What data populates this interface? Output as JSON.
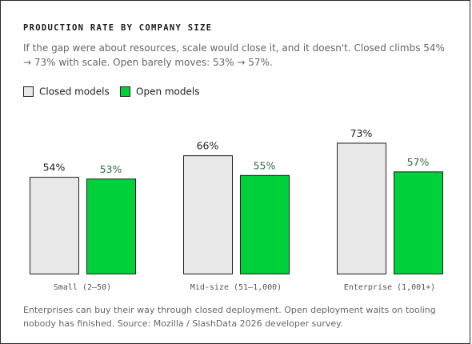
{
  "chart_data": {
    "type": "bar",
    "title": "PRODUCTION RATE BY COMPANY SIZE",
    "subtitle": "If the gap were about resources, scale would close it, and it doesn't. Closed climbs 54% → 73% with scale. Open barely moves: 53% → 57%.",
    "footer": "Enterprises can buy their way through closed deployment. Open deployment waits on tooling nobody has finished. Source: Mozilla / SlashData 2026 developer survey.",
    "categories": [
      "Small (2–50)",
      "Mid-size (51–1,000)",
      "Enterprise (1,001+)"
    ],
    "series": [
      {
        "name": "Closed models",
        "color": "#e8e8e8",
        "values": [
          54,
          66,
          73
        ],
        "value_labels": [
          "54%",
          "66%",
          "73%"
        ]
      },
      {
        "name": "Open models",
        "color": "#00d13a",
        "values": [
          53,
          55,
          57
        ],
        "value_labels": [
          "53%",
          "55%",
          "57%"
        ]
      }
    ]
  }
}
